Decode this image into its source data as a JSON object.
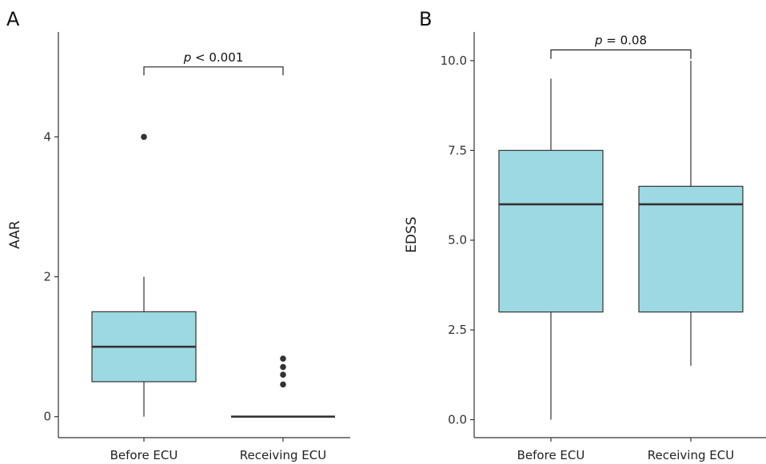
{
  "figure": {
    "panels": [
      "A",
      "B"
    ]
  },
  "chart_data": [
    {
      "type": "boxplot",
      "panel": "A",
      "ylabel": "AAR",
      "xlabel": "",
      "ylim": [
        -0.3,
        5.5
      ],
      "yticks": [
        0,
        2,
        4
      ],
      "ytick_labels": [
        "0",
        "2",
        "4"
      ],
      "categories": [
        "Before ECU",
        "Receiving ECU"
      ],
      "fill_color": "#9dd9e2",
      "boxes": [
        {
          "category": "Before ECU",
          "whisker_low": 0,
          "q1": 0.5,
          "median": 1.0,
          "q3": 1.5,
          "whisker_high": 2.0,
          "outliers": [
            4.0
          ]
        },
        {
          "category": "Receiving ECU",
          "whisker_low": 0,
          "q1": 0,
          "median": 0,
          "q3": 0,
          "whisker_high": 0,
          "outliers": [
            0.46,
            0.6,
            0.71,
            0.83
          ]
        }
      ],
      "comparison": {
        "p_symbol": "p",
        "p_rest": " < 0.001",
        "bracket_y": 5.0,
        "bracket_drop": 0.12
      }
    },
    {
      "type": "boxplot",
      "panel": "B",
      "ylabel": "EDSS",
      "xlabel": "",
      "ylim": [
        -0.5,
        10.8
      ],
      "yticks": [
        0,
        2.5,
        5,
        7.5,
        10
      ],
      "ytick_labels": [
        "0.0",
        "2.5",
        "5.0",
        "7.5",
        "10.0"
      ],
      "categories": [
        "Before ECU",
        "Receiving ECU"
      ],
      "fill_color": "#9dd9e2",
      "boxes": [
        {
          "category": "Before ECU",
          "whisker_low": 0,
          "q1": 3.0,
          "median": 6.0,
          "q3": 7.5,
          "whisker_high": 9.5,
          "outliers": []
        },
        {
          "category": "Receiving ECU",
          "whisker_low": 1.5,
          "q1": 3.0,
          "median": 6.0,
          "q3": 6.5,
          "whisker_high": 10.0,
          "outliers": []
        }
      ],
      "comparison": {
        "p_symbol": "p",
        "p_rest": " = 0.08",
        "bracket_y": 10.3,
        "bracket_drop": 0.25
      }
    }
  ]
}
